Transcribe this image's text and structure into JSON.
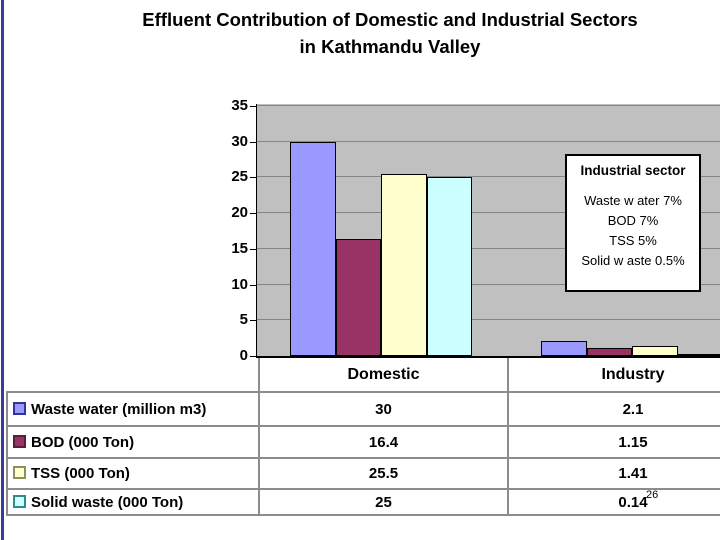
{
  "slide": {
    "title_line1": "Effluent Contribution of Domestic and Industrial Sectors",
    "title_line2": "in Kathmandu Valley",
    "page_number": "26",
    "accent_color": "#3A3A99"
  },
  "chart_data": {
    "type": "bar",
    "title": "Effluent Contribution of Domestic and Industrial Sectors in Kathmandu Valley",
    "categories": [
      "Domestic",
      "Industry"
    ],
    "series": [
      {
        "name": "Waste water (million m3)",
        "color": "#9999FF",
        "swatch_border": "#333399",
        "values": [
          30,
          2.1
        ]
      },
      {
        "name": "BOD (000 Ton)",
        "color": "#993366",
        "swatch_border": "#5A1E3C",
        "values": [
          16.4,
          1.15
        ]
      },
      {
        "name": "TSS (000 Ton)",
        "color": "#FFFFCC",
        "swatch_border": "#8F8F62",
        "values": [
          25.5,
          1.41
        ]
      },
      {
        "name": "Solid waste (000 Ton)",
        "color": "#CCFFFF",
        "swatch_border": "#2E8C8C",
        "values": [
          25,
          0.14
        ]
      }
    ],
    "ylim": [
      0,
      35
    ],
    "yticks": [
      0,
      5,
      10,
      15,
      20,
      25,
      30,
      35
    ],
    "grid": true,
    "plot_bg_color": "#C0C0C0",
    "gridline_color": "#868686",
    "bar_border_color": "#000000",
    "legend_position": "table-rows-left"
  },
  "annotation_box": {
    "title": "Industrial sector",
    "lines": [
      "Waste w ater 7%",
      "BOD 7%",
      "TSS 5%",
      "Solid w aste 0.5%"
    ]
  },
  "table": {
    "column_headers": [
      "Domestic",
      "Industry"
    ],
    "rows": [
      {
        "label": "Waste water (million m3)",
        "domestic": "30",
        "industry": "2.1"
      },
      {
        "label": "BOD (000 Ton)",
        "domestic": "16.4",
        "industry": "1.15"
      },
      {
        "label": "TSS (000 Ton)",
        "domestic": "25.5",
        "industry": "1.41"
      },
      {
        "label": "Solid waste (000 Ton)",
        "domestic": "25",
        "industry": "0.14"
      }
    ]
  }
}
